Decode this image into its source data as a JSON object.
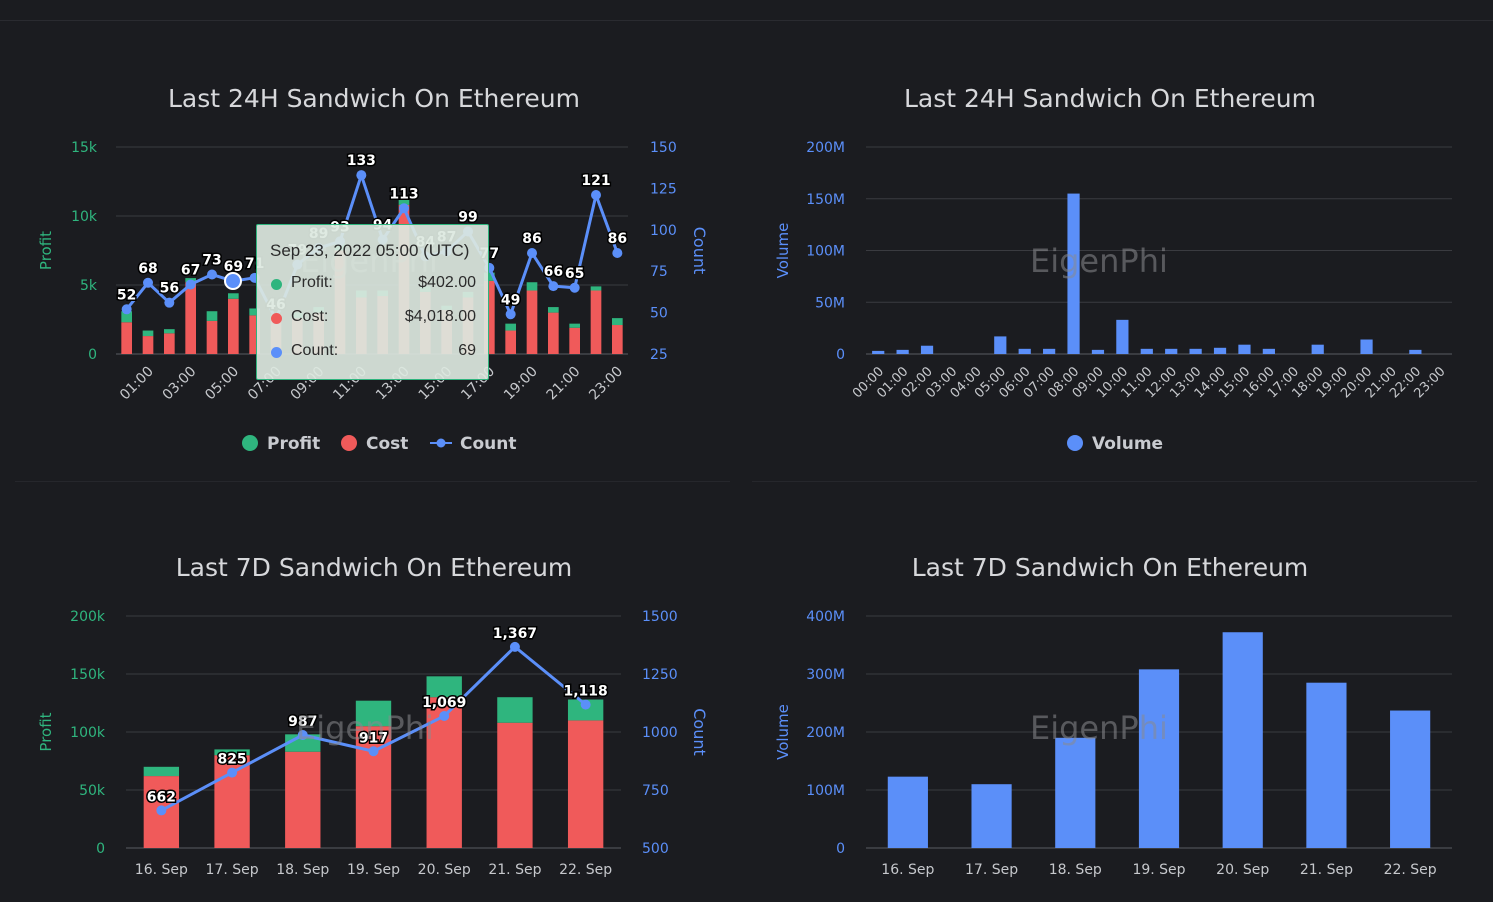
{
  "colors": {
    "profit": "#2fb57e",
    "cost": "#f05a5a",
    "count": "#5b8ff9",
    "volume": "#5b8ff9"
  },
  "watermark": "EigenPhi",
  "legend": {
    "profit": "Profit",
    "cost": "Cost",
    "count": "Count",
    "volume": "Volume"
  },
  "tooltip": {
    "title": "Sep 23, 2022 05:00 (UTC)",
    "rows": [
      {
        "label": "Profit:",
        "value": "$402.00"
      },
      {
        "label": "Cost:",
        "value": "$4,018.00"
      },
      {
        "label": "Count:",
        "value": "69"
      }
    ]
  },
  "chart_data": [
    {
      "type": "bar",
      "title": "Last 24H Sandwich On Ethereum",
      "ylabel": "Profit",
      "y2label": "Count",
      "stacked": true,
      "categories": [
        "00:00",
        "01:00",
        "02:00",
        "03:00",
        "04:00",
        "05:00",
        "06:00",
        "07:00",
        "08:00",
        "09:00",
        "10:00",
        "11:00",
        "12:00",
        "13:00",
        "14:00",
        "15:00",
        "16:00",
        "17:00",
        "18:00",
        "19:00",
        "20:00",
        "21:00",
        "22:00",
        "23:00"
      ],
      "x_tick_labels": [
        "01:00",
        "03:00",
        "05:00",
        "07:00",
        "09:00",
        "11:00",
        "13:00",
        "15:00",
        "17:00",
        "19:00",
        "21:00",
        "23:00"
      ],
      "ylim": [
        0,
        15000
      ],
      "y_ticks": [
        "0",
        "5k",
        "10k",
        "15k"
      ],
      "y2lim": [
        25,
        150
      ],
      "y2_ticks": [
        "25",
        "50",
        "75",
        "100",
        "125",
        "150"
      ],
      "series": [
        {
          "name": "Profit",
          "values": [
            800,
            400,
            300,
            300,
            700,
            400,
            500,
            400,
            400,
            400,
            500,
            500,
            400,
            500,
            400,
            300,
            400,
            600,
            500,
            600,
            400,
            300,
            300,
            500
          ]
        },
        {
          "name": "Cost",
          "values": [
            2300,
            1300,
            1500,
            5200,
            2400,
            4000,
            2800,
            2500,
            2600,
            3000,
            7500,
            4100,
            4200,
            10800,
            4500,
            3200,
            4100,
            5300,
            1700,
            4600,
            3000,
            1900,
            4600,
            2100
          ]
        },
        {
          "name": "Count",
          "type": "line",
          "values": [
            52,
            68,
            56,
            67,
            73,
            69,
            71,
            46,
            79,
            89,
            93,
            133,
            94,
            113,
            84,
            87,
            99,
            77,
            49,
            86,
            66,
            65,
            121,
            86
          ]
        }
      ]
    },
    {
      "type": "bar",
      "title": "Last 24H Sandwich On Ethereum",
      "ylabel": "Volume",
      "categories": [
        "00:00",
        "01:00",
        "02:00",
        "03:00",
        "04:00",
        "05:00",
        "06:00",
        "07:00",
        "08:00",
        "09:00",
        "10:00",
        "11:00",
        "12:00",
        "13:00",
        "14:00",
        "15:00",
        "16:00",
        "17:00",
        "18:00",
        "19:00",
        "20:00",
        "21:00",
        "22:00",
        "23:00"
      ],
      "ylim": [
        0,
        200000000
      ],
      "y_ticks": [
        "0",
        "50M",
        "100M",
        "150M",
        "200M"
      ],
      "series": [
        {
          "name": "Volume",
          "values": [
            3000000,
            4000000,
            8000000,
            0,
            0,
            17000000,
            5000000,
            5000000,
            155000000,
            4000000,
            33000000,
            5000000,
            5000000,
            5000000,
            6000000,
            9000000,
            5000000,
            0,
            9000000,
            0,
            14000000,
            0,
            4000000,
            0
          ]
        }
      ]
    },
    {
      "type": "bar",
      "title": "Last 7D Sandwich On Ethereum",
      "ylabel": "Profit",
      "y2label": "Count",
      "stacked": true,
      "categories": [
        "16. Sep",
        "17. Sep",
        "18. Sep",
        "19. Sep",
        "20. Sep",
        "21. Sep",
        "22. Sep"
      ],
      "ylim": [
        0,
        200000
      ],
      "y_ticks": [
        "0",
        "50k",
        "100k",
        "150k",
        "200k"
      ],
      "y2lim": [
        500,
        1500
      ],
      "y2_ticks": [
        "500",
        "750",
        "1000",
        "1250",
        "1500"
      ],
      "series": [
        {
          "name": "Profit",
          "values": [
            8000,
            5000,
            15000,
            22000,
            18000,
            22000,
            18000
          ]
        },
        {
          "name": "Cost",
          "values": [
            62000,
            80000,
            83000,
            105000,
            130000,
            108000,
            110000
          ]
        },
        {
          "name": "Count",
          "type": "line",
          "values": [
            662,
            825,
            987,
            917,
            1069,
            1367,
            1118
          ],
          "labels": [
            "662",
            "825",
            "987",
            "917",
            "1,069",
            "1,367",
            "1,118"
          ]
        }
      ]
    },
    {
      "type": "bar",
      "title": "Last 7D Sandwich On Ethereum",
      "ylabel": "Volume",
      "categories": [
        "16. Sep",
        "17. Sep",
        "18. Sep",
        "19. Sep",
        "20. Sep",
        "21. Sep",
        "22. Sep"
      ],
      "ylim": [
        0,
        400000000
      ],
      "y_ticks": [
        "0",
        "100M",
        "200M",
        "300M",
        "400M"
      ],
      "series": [
        {
          "name": "Volume",
          "values": [
            123000000,
            110000000,
            190000000,
            308000000,
            372000000,
            285000000,
            237000000
          ]
        }
      ]
    }
  ]
}
